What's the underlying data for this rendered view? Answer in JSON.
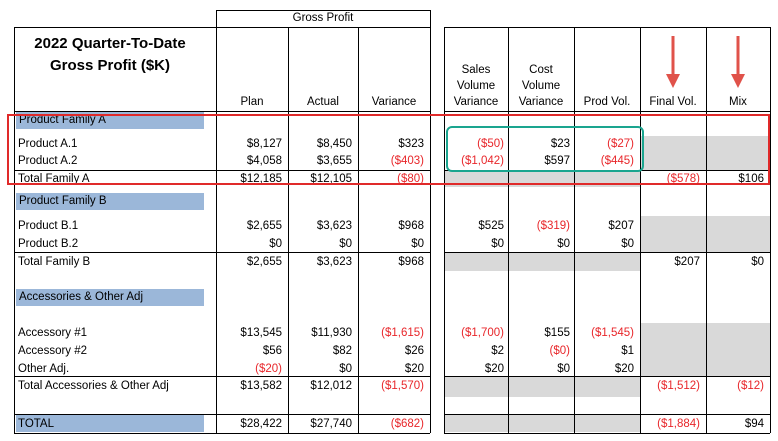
{
  "title_lines": [
    "2022 Quarter-To-Date",
    "Gross Profit ($K)"
  ],
  "group_header": "Gross Profit",
  "columns": {
    "plan": "Plan",
    "actual": "Actual",
    "variance": "Variance",
    "sales_vol_var": [
      "Sales",
      "Volume",
      "Variance"
    ],
    "cost_vol_var": [
      "Cost",
      "Volume",
      "Variance"
    ],
    "prod_vol": "Prod Vol.",
    "final_vol": "Final Vol.",
    "mix": "Mix"
  },
  "sections": {
    "family_a": "Product Family A",
    "family_b": "Product Family B",
    "accessories": "Accessories & Other Adj"
  },
  "rows": [
    {
      "label": "Product A.1",
      "plan": "$8,127",
      "actual": "$8,450",
      "variance": "$323",
      "svv": "($50)",
      "cvv": "$23",
      "pv": "($27)",
      "fv": "",
      "mix": ""
    },
    {
      "label": "Product A.2",
      "plan": "$4,058",
      "actual": "$3,655",
      "variance": "($403)",
      "svv": "($1,042)",
      "cvv": "$597",
      "pv": "($445)",
      "fv": "",
      "mix": ""
    },
    {
      "label": "Total Family A",
      "plan": "$12,185",
      "actual": "$12,105",
      "variance": "($80)",
      "svv": "",
      "cvv": "",
      "pv": "",
      "fv": "($578)",
      "mix": "$106"
    },
    {
      "label": "Product B.1",
      "plan": "$2,655",
      "actual": "$3,623",
      "variance": "$968",
      "svv": "$525",
      "cvv": "($319)",
      "pv": "$207",
      "fv": "",
      "mix": ""
    },
    {
      "label": "Product B.2",
      "plan": "$0",
      "actual": "$0",
      "variance": "$0",
      "svv": "$0",
      "cvv": "$0",
      "pv": "$0",
      "fv": "",
      "mix": ""
    },
    {
      "label": "Total Family B",
      "plan": "$2,655",
      "actual": "$3,623",
      "variance": "$968",
      "svv": "",
      "cvv": "",
      "pv": "",
      "fv": "$207",
      "mix": "$0"
    },
    {
      "label": "Accessory #1",
      "plan": "$13,545",
      "actual": "$11,930",
      "variance": "($1,615)",
      "svv": "($1,700)",
      "cvv": "$155",
      "pv": "($1,545)",
      "fv": "",
      "mix": ""
    },
    {
      "label": "Accessory #2",
      "plan": "$56",
      "actual": "$82",
      "variance": "$26",
      "svv": "$2",
      "cvv": "($0)",
      "pv": "$1",
      "fv": "",
      "mix": ""
    },
    {
      "label": "Other Adj.",
      "plan": "($20)",
      "actual": "$0",
      "variance": "$20",
      "svv": "$20",
      "cvv": "$0",
      "pv": "$20",
      "fv": "",
      "mix": ""
    },
    {
      "label": "Total Accessories & Other Adj",
      "plan": "$13,582",
      "actual": "$12,012",
      "variance": "($1,570)",
      "svv": "",
      "cvv": "",
      "pv": "",
      "fv": "($1,512)",
      "mix": "($12)"
    },
    {
      "label": "TOTAL",
      "plan": "$28,422",
      "actual": "$27,740",
      "variance": "($682)",
      "svv": "",
      "cvv": "",
      "pv": "",
      "fv": "($1,884)",
      "mix": "$94"
    }
  ],
  "colors": {
    "negative": "#e8262a",
    "section_band": "#9bb7d9",
    "shaded_cell": "#d9d9d9",
    "highlight_red": "#e02a2a",
    "highlight_teal": "#1aa58f"
  }
}
